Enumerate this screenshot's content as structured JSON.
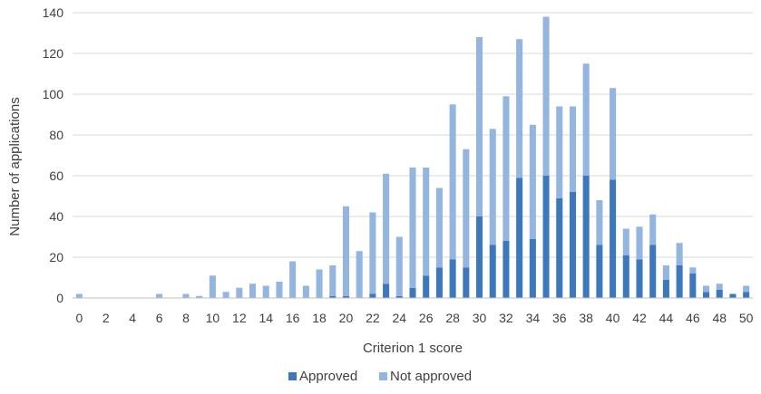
{
  "chart_data": {
    "type": "bar",
    "stacked": true,
    "title": "",
    "xlabel": "Criterion 1 score",
    "ylabel": "Number of applications",
    "ylim": [
      0,
      140
    ],
    "y_ticks": [
      0,
      20,
      40,
      60,
      80,
      100,
      120,
      140
    ],
    "x_tick_labels": [
      "0",
      "2",
      "4",
      "6",
      "8",
      "10",
      "12",
      "14",
      "16",
      "18",
      "20",
      "22",
      "24",
      "26",
      "28",
      "30",
      "32",
      "34",
      "36",
      "38",
      "40",
      "42",
      "44",
      "46",
      "48",
      "50"
    ],
    "grid": "horizontal",
    "legend_position": "bottom",
    "categories": [
      0,
      1,
      2,
      3,
      4,
      5,
      6,
      7,
      8,
      9,
      10,
      11,
      12,
      13,
      14,
      15,
      16,
      17,
      18,
      19,
      20,
      21,
      22,
      23,
      24,
      25,
      26,
      27,
      28,
      29,
      30,
      31,
      32,
      33,
      34,
      35,
      36,
      37,
      38,
      39,
      40,
      41,
      42,
      43,
      44,
      45,
      46,
      47,
      48,
      49,
      50
    ],
    "series": [
      {
        "name": "Approved",
        "color": "#3d78bd",
        "values": [
          0,
          0,
          0,
          0,
          0,
          0,
          0,
          0,
          0,
          0,
          0,
          0,
          0,
          0,
          0,
          0,
          0,
          0,
          0,
          1,
          1,
          0,
          2,
          7,
          1,
          5,
          11,
          15,
          19,
          15,
          40,
          26,
          28,
          59,
          29,
          60,
          49,
          52,
          60,
          26,
          58,
          21,
          19,
          26,
          9,
          16,
          12,
          3,
          4,
          2,
          3
        ]
      },
      {
        "name": "Not approved",
        "color": "#93b5df",
        "values": [
          2,
          0,
          0,
          0,
          0,
          0,
          2,
          0,
          2,
          1,
          11,
          3,
          5,
          7,
          6,
          8,
          18,
          6,
          14,
          15,
          44,
          23,
          40,
          54,
          29,
          59,
          53,
          39,
          76,
          58,
          88,
          57,
          71,
          68,
          56,
          78,
          45,
          42,
          55,
          22,
          45,
          13,
          16,
          15,
          7,
          11,
          3,
          3,
          3,
          0,
          3
        ]
      }
    ]
  }
}
